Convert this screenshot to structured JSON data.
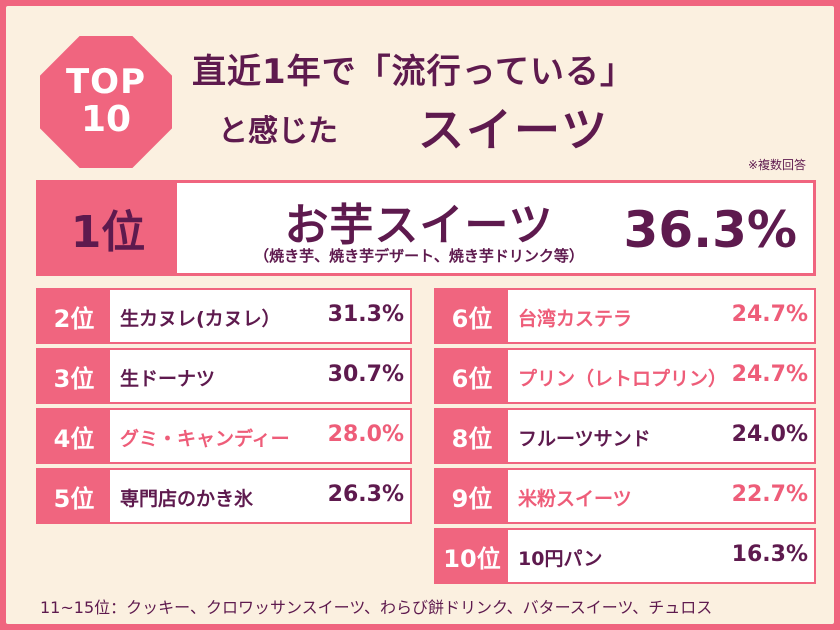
{
  "badge": {
    "top": "TOP",
    "num": "10"
  },
  "title": {
    "line1": "直近1年で「流行っている」",
    "line2a": "と感じた",
    "line2b": "スイーツ"
  },
  "note": "※複数回答",
  "colors": {
    "pink": "#f0657f",
    "dark": "#5e1a4e",
    "cream": "#fbf0e0"
  },
  "chart_data": {
    "type": "table",
    "unit": "%",
    "first": {
      "rank": "1位",
      "name": "お芋スイーツ",
      "sub": "（焼き芋、焼き芋デザート、焼き芋ドリンク等）",
      "value": 36.3,
      "value_label": "36.3%"
    },
    "left": [
      {
        "rank": "2位",
        "name": "生カヌレ(カヌレ）",
        "value": 31.3,
        "value_label": "31.3%",
        "color": "dark"
      },
      {
        "rank": "3位",
        "name": "生ドーナツ",
        "value": 30.7,
        "value_label": "30.7%",
        "color": "dark"
      },
      {
        "rank": "4位",
        "name": "グミ・キャンディー",
        "value": 28.0,
        "value_label": "28.0%",
        "color": "pink"
      },
      {
        "rank": "5位",
        "name": "専門店のかき氷",
        "value": 26.3,
        "value_label": "26.3%",
        "color": "dark"
      }
    ],
    "right": [
      {
        "rank": "6位",
        "name": "台湾カステラ",
        "value": 24.7,
        "value_label": "24.7%",
        "color": "pink"
      },
      {
        "rank": "6位",
        "name": "プリン（レトロプリン）",
        "value": 24.7,
        "value_label": "24.7%",
        "color": "pink"
      },
      {
        "rank": "8位",
        "name": "フルーツサンド",
        "value": 24.0,
        "value_label": "24.0%",
        "color": "dark"
      },
      {
        "rank": "9位",
        "name": "米粉スイーツ",
        "value": 22.7,
        "value_label": "22.7%",
        "color": "pink"
      },
      {
        "rank": "10位",
        "name": "10円パン",
        "value": 16.3,
        "value_label": "16.3%",
        "color": "dark"
      }
    ]
  },
  "footer": "11~15位：クッキー、クロワッサンスイーツ、わらび餅ドリンク、バタースイーツ、チュロス"
}
